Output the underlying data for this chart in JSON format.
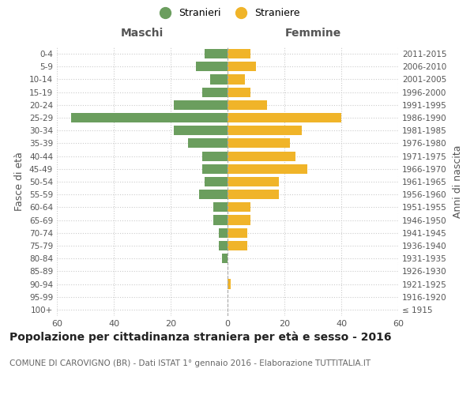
{
  "age_groups": [
    "100+",
    "95-99",
    "90-94",
    "85-89",
    "80-84",
    "75-79",
    "70-74",
    "65-69",
    "60-64",
    "55-59",
    "50-54",
    "45-49",
    "40-44",
    "35-39",
    "30-34",
    "25-29",
    "20-24",
    "15-19",
    "10-14",
    "5-9",
    "0-4"
  ],
  "birth_years": [
    "≤ 1915",
    "1916-1920",
    "1921-1925",
    "1926-1930",
    "1931-1935",
    "1936-1940",
    "1941-1945",
    "1946-1950",
    "1951-1955",
    "1956-1960",
    "1961-1965",
    "1966-1970",
    "1971-1975",
    "1976-1980",
    "1981-1985",
    "1986-1990",
    "1991-1995",
    "1996-2000",
    "2001-2005",
    "2006-2010",
    "2011-2015"
  ],
  "maschi": [
    0,
    0,
    0,
    0,
    2,
    3,
    3,
    5,
    5,
    10,
    8,
    9,
    9,
    14,
    19,
    55,
    19,
    9,
    6,
    11,
    8
  ],
  "femmine": [
    0,
    0,
    1,
    0,
    0,
    7,
    7,
    8,
    8,
    18,
    18,
    28,
    24,
    22,
    26,
    40,
    14,
    8,
    6,
    10,
    8
  ],
  "color_maschi": "#6b9e5e",
  "color_femmine": "#f0b429",
  "title": "Popolazione per cittadinanza straniera per età e sesso - 2016",
  "subtitle": "COMUNE DI CAROVIGNO (BR) - Dati ISTAT 1° gennaio 2016 - Elaborazione TUTTITALIA.IT",
  "label_maschi": "Maschi",
  "label_femmine": "Femmine",
  "ylabel_left": "Fasce di età",
  "ylabel_right": "Anni di nascita",
  "legend_maschi": "Stranieri",
  "legend_femmine": "Straniere",
  "xlim": 60,
  "bg_color": "#ffffff",
  "grid_color": "#cccccc",
  "bar_height": 0.75
}
